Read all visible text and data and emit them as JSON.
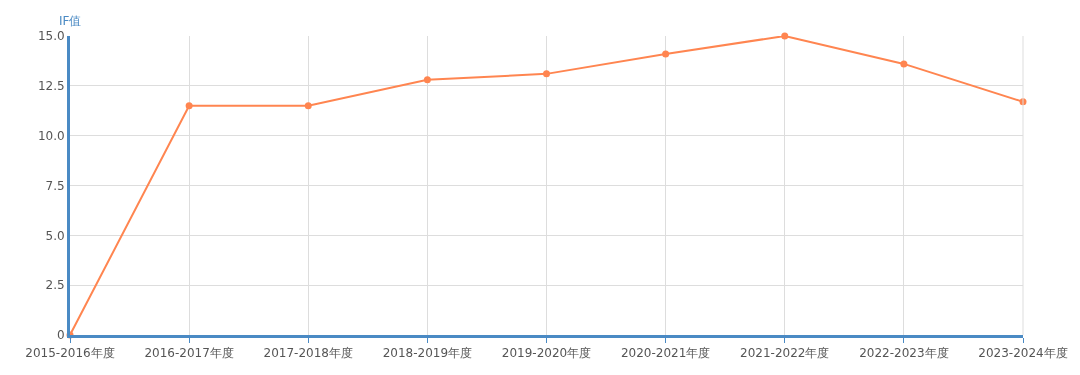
{
  "chart_data": {
    "type": "line",
    "ylabel": "IF值",
    "categories": [
      "2015-2016年度",
      "2016-2017年度",
      "2017-2018年度",
      "2018-2019年度",
      "2019-2020年度",
      "2020-2021年度",
      "2021-2022年度",
      "2022-2023年度",
      "2023-2024年度"
    ],
    "series": [
      {
        "color": "#ff8550",
        "values": [
          0,
          11.5,
          11.5,
          12.8,
          13.1,
          14.1,
          15.0,
          13.6,
          11.7
        ]
      }
    ],
    "ylim": [
      0,
      15
    ],
    "yticks": [
      0,
      2.5,
      {
        "value": 5,
        "label": "5.0"
      },
      7.5,
      {
        "value": 10,
        "label": "10.0"
      },
      12.5,
      {
        "value": 15,
        "label": "15.0"
      }
    ],
    "grid": true,
    "marker": "circle",
    "line_style": "solid"
  }
}
